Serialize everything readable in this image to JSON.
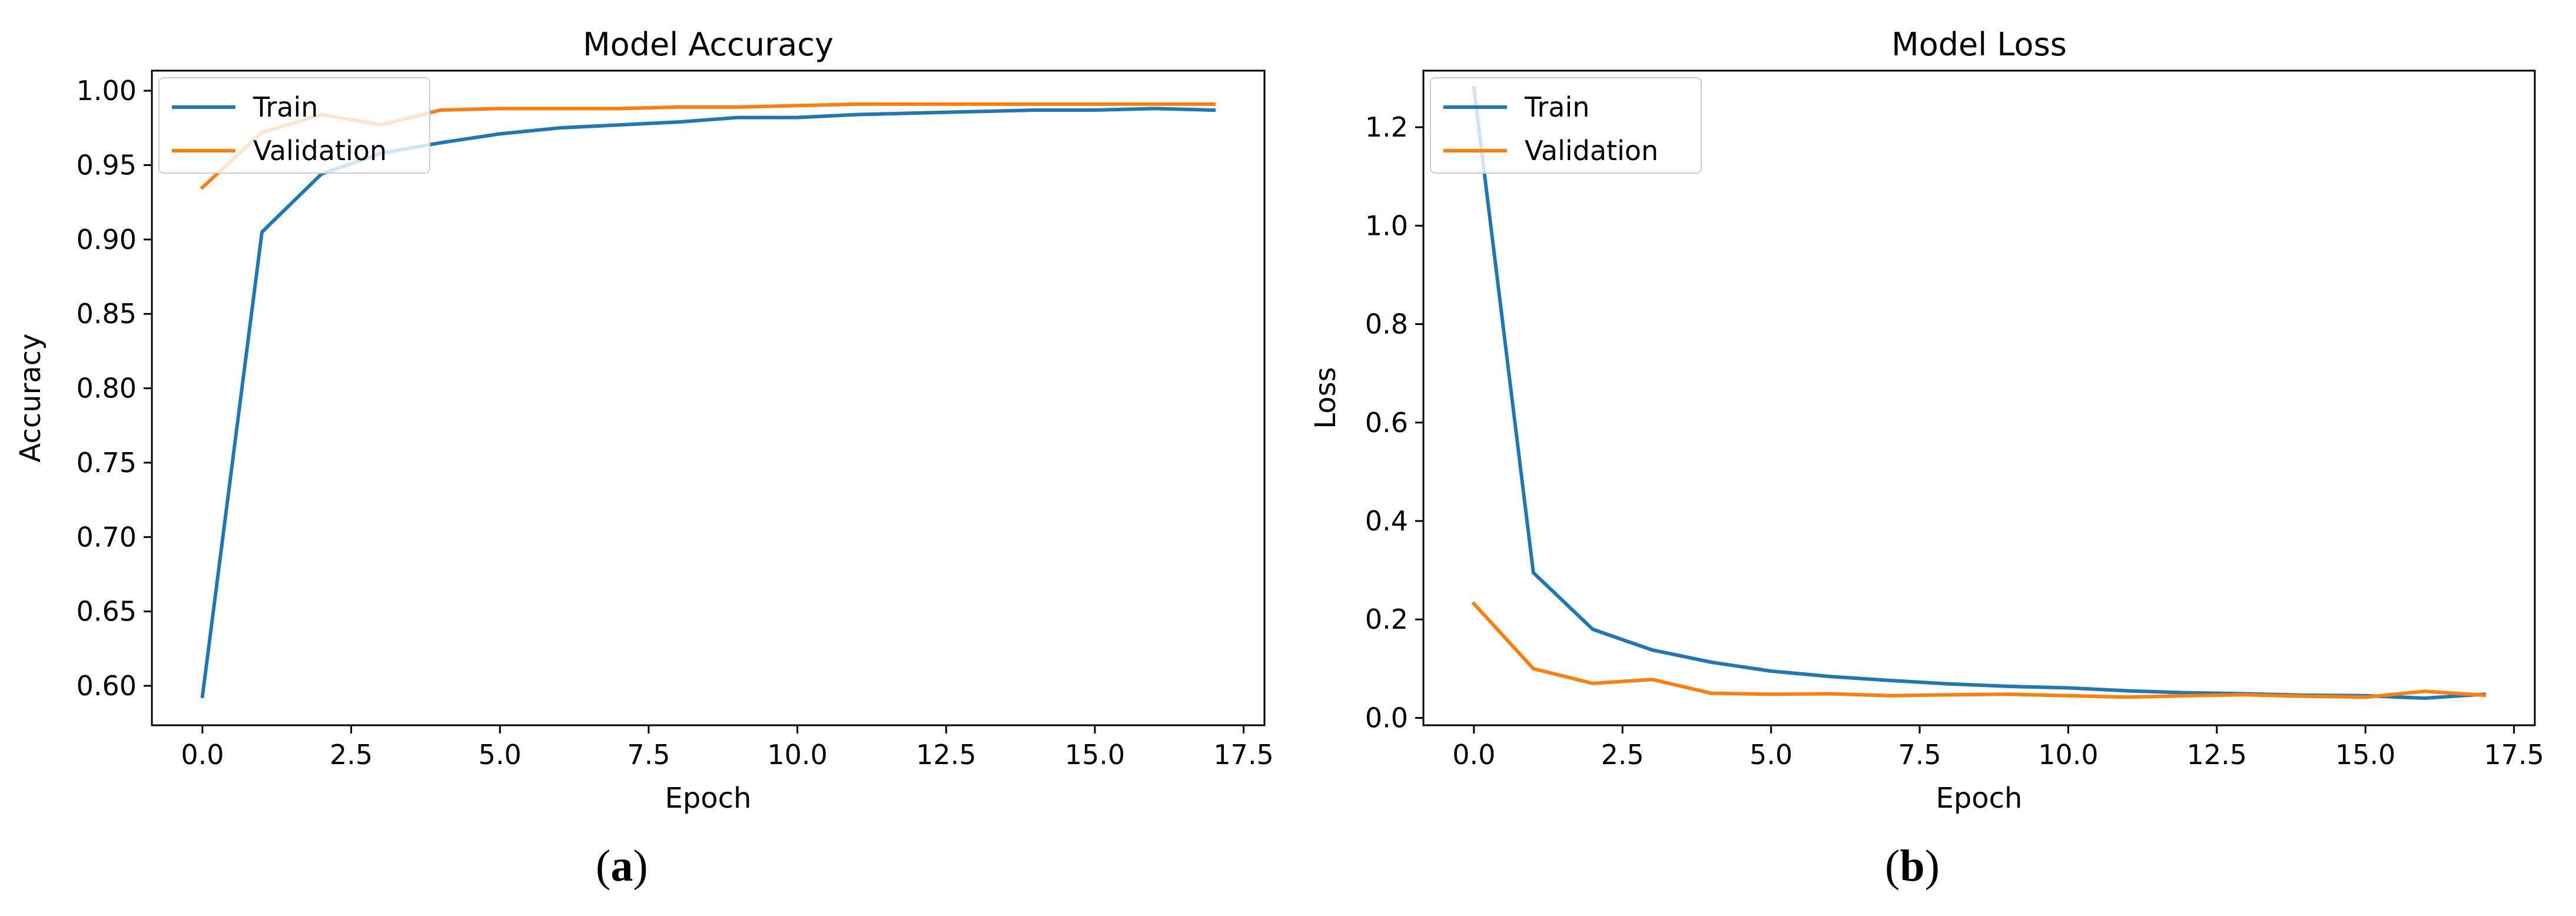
{
  "colors": {
    "train": "#1f77b4",
    "validation": "#ff7f0e",
    "axis": "#000000"
  },
  "panels": [
    {
      "label_open": "(",
      "label_letter": "a",
      "label_close": ")"
    },
    {
      "label_open": "(",
      "label_letter": "b",
      "label_close": ")"
    }
  ],
  "chart_data": [
    {
      "type": "line",
      "title": "Model Accuracy",
      "xlabel": "Epoch",
      "ylabel": "Accuracy",
      "xlim": [
        -0.85,
        17.85
      ],
      "ylim": [
        0.5735,
        1.0135
      ],
      "xticks": [
        0.0,
        2.5,
        5.0,
        7.5,
        10.0,
        12.5,
        15.0,
        17.5
      ],
      "xtick_labels": [
        "0.0",
        "2.5",
        "5.0",
        "7.5",
        "10.0",
        "12.5",
        "15.0",
        "17.5"
      ],
      "yticks": [
        0.6,
        0.65,
        0.7,
        0.75,
        0.8,
        0.85,
        0.9,
        0.95,
        1.0
      ],
      "ytick_labels": [
        "0.60",
        "0.65",
        "0.70",
        "0.75",
        "0.80",
        "0.85",
        "0.90",
        "0.95",
        "1.00"
      ],
      "legend": {
        "position": "upper-left",
        "entries": [
          "Train",
          "Validation"
        ]
      },
      "x": [
        0,
        1,
        2,
        3,
        4,
        5,
        6,
        7,
        8,
        9,
        10,
        11,
        12,
        13,
        14,
        15,
        16,
        17
      ],
      "series": [
        {
          "name": "Train",
          "color": "#1f77b4",
          "values": [
            0.593,
            0.905,
            0.944,
            0.958,
            0.965,
            0.971,
            0.975,
            0.977,
            0.979,
            0.982,
            0.982,
            0.984,
            0.985,
            0.986,
            0.987,
            0.987,
            0.988,
            0.987
          ]
        },
        {
          "name": "Validation",
          "color": "#ff7f0e",
          "values": [
            0.935,
            0.972,
            0.984,
            0.977,
            0.987,
            0.988,
            0.988,
            0.988,
            0.989,
            0.989,
            0.99,
            0.991,
            0.991,
            0.991,
            0.991,
            0.991,
            0.991,
            0.991
          ]
        }
      ]
    },
    {
      "type": "line",
      "title": "Model Loss",
      "xlabel": "Epoch",
      "ylabel": "Loss",
      "xlim": [
        -0.85,
        17.85
      ],
      "ylim": [
        -0.015,
        1.315
      ],
      "xticks": [
        0.0,
        2.5,
        5.0,
        7.5,
        10.0,
        12.5,
        15.0,
        17.5
      ],
      "xtick_labels": [
        "0.0",
        "2.5",
        "5.0",
        "7.5",
        "10.0",
        "12.5",
        "15.0",
        "17.5"
      ],
      "yticks": [
        0.0,
        0.2,
        0.4,
        0.6,
        0.8,
        1.0,
        1.2
      ],
      "ytick_labels": [
        "0.0",
        "0.2",
        "0.4",
        "0.6",
        "0.8",
        "1.0",
        "1.2"
      ],
      "legend": {
        "position": "upper-left",
        "entries": [
          "Train",
          "Validation"
        ]
      },
      "x": [
        0,
        1,
        2,
        3,
        4,
        5,
        6,
        7,
        8,
        9,
        10,
        11,
        12,
        13,
        14,
        15,
        16,
        17
      ],
      "series": [
        {
          "name": "Train",
          "color": "#1f77b4",
          "values": [
            1.28,
            0.295,
            0.18,
            0.138,
            0.113,
            0.095,
            0.084,
            0.076,
            0.069,
            0.064,
            0.061,
            0.055,
            0.051,
            0.049,
            0.046,
            0.045,
            0.04,
            0.048
          ]
        },
        {
          "name": "Validation",
          "color": "#ff7f0e",
          "values": [
            0.232,
            0.1,
            0.07,
            0.078,
            0.05,
            0.048,
            0.049,
            0.045,
            0.047,
            0.048,
            0.045,
            0.042,
            0.045,
            0.047,
            0.044,
            0.042,
            0.054,
            0.046
          ]
        }
      ]
    }
  ]
}
